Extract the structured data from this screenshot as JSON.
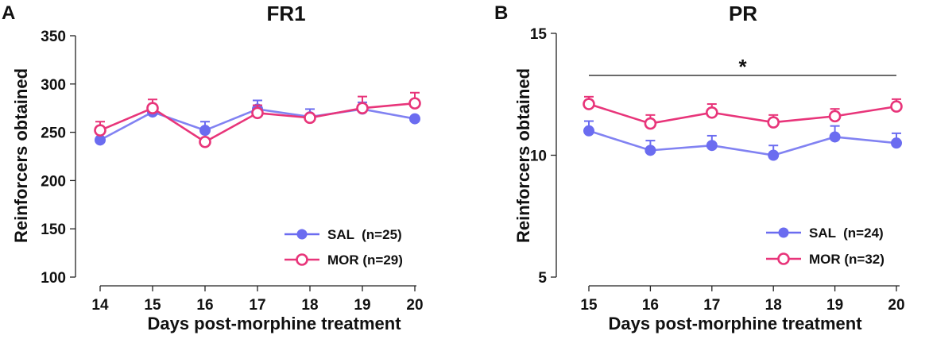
{
  "chart_data": [
    {
      "type": "line",
      "panel": "A",
      "title": "FR1",
      "xlabel": "Days post-morphine treatment",
      "ylabel": "Reinforcers obtained",
      "x": [
        14,
        15,
        16,
        17,
        18,
        19,
        20
      ],
      "x_ticks": [
        "14",
        "15",
        "16",
        "17",
        "18",
        "19",
        "20"
      ],
      "y_ticks": [
        "100",
        "150",
        "200",
        "250",
        "300",
        "350"
      ],
      "ylim": [
        100,
        350
      ],
      "legend_position": "bottom-right",
      "series": [
        {
          "name": "SAL",
          "legend": "SAL  (n=25)",
          "color": "#6b6cf0",
          "marker": "filled-circle",
          "values": [
            242,
            271,
            252,
            274,
            266,
            274,
            264
          ],
          "error": [
            0,
            5,
            9,
            9,
            8,
            7,
            0
          ]
        },
        {
          "name": "MOR",
          "legend": "MOR (n=29)",
          "color": "#e8357a",
          "marker": "open-circle",
          "values": [
            252,
            275,
            240,
            270,
            265,
            275,
            280
          ],
          "error": [
            9,
            9,
            0,
            8,
            0,
            12,
            11
          ]
        }
      ]
    },
    {
      "type": "line",
      "panel": "B",
      "title": "PR",
      "xlabel": "Days post-morphine treatment",
      "ylabel": "Reinforcers obtained",
      "x": [
        15,
        16,
        17,
        18,
        19,
        20
      ],
      "x_ticks": [
        "15",
        "16",
        "17",
        "18",
        "19",
        "20"
      ],
      "y_ticks": [
        "5",
        "10",
        "15"
      ],
      "ylim": [
        5,
        15
      ],
      "significance": {
        "label": "*",
        "from": 15,
        "to": 20
      },
      "legend_position": "bottom-right",
      "series": [
        {
          "name": "SAL",
          "legend": "SAL  (n=24)",
          "color": "#6b6cf0",
          "marker": "filled-circle",
          "values": [
            11.0,
            10.2,
            10.4,
            10.0,
            10.75,
            10.5
          ],
          "error": [
            0.4,
            0.4,
            0.4,
            0.4,
            0.45,
            0.4
          ]
        },
        {
          "name": "MOR",
          "legend": "MOR (n=32)",
          "color": "#e8357a",
          "marker": "open-circle",
          "values": [
            12.1,
            11.3,
            11.75,
            11.35,
            11.6,
            12.0
          ],
          "error": [
            0.3,
            0.35,
            0.35,
            0.3,
            0.3,
            0.3
          ]
        }
      ]
    }
  ]
}
